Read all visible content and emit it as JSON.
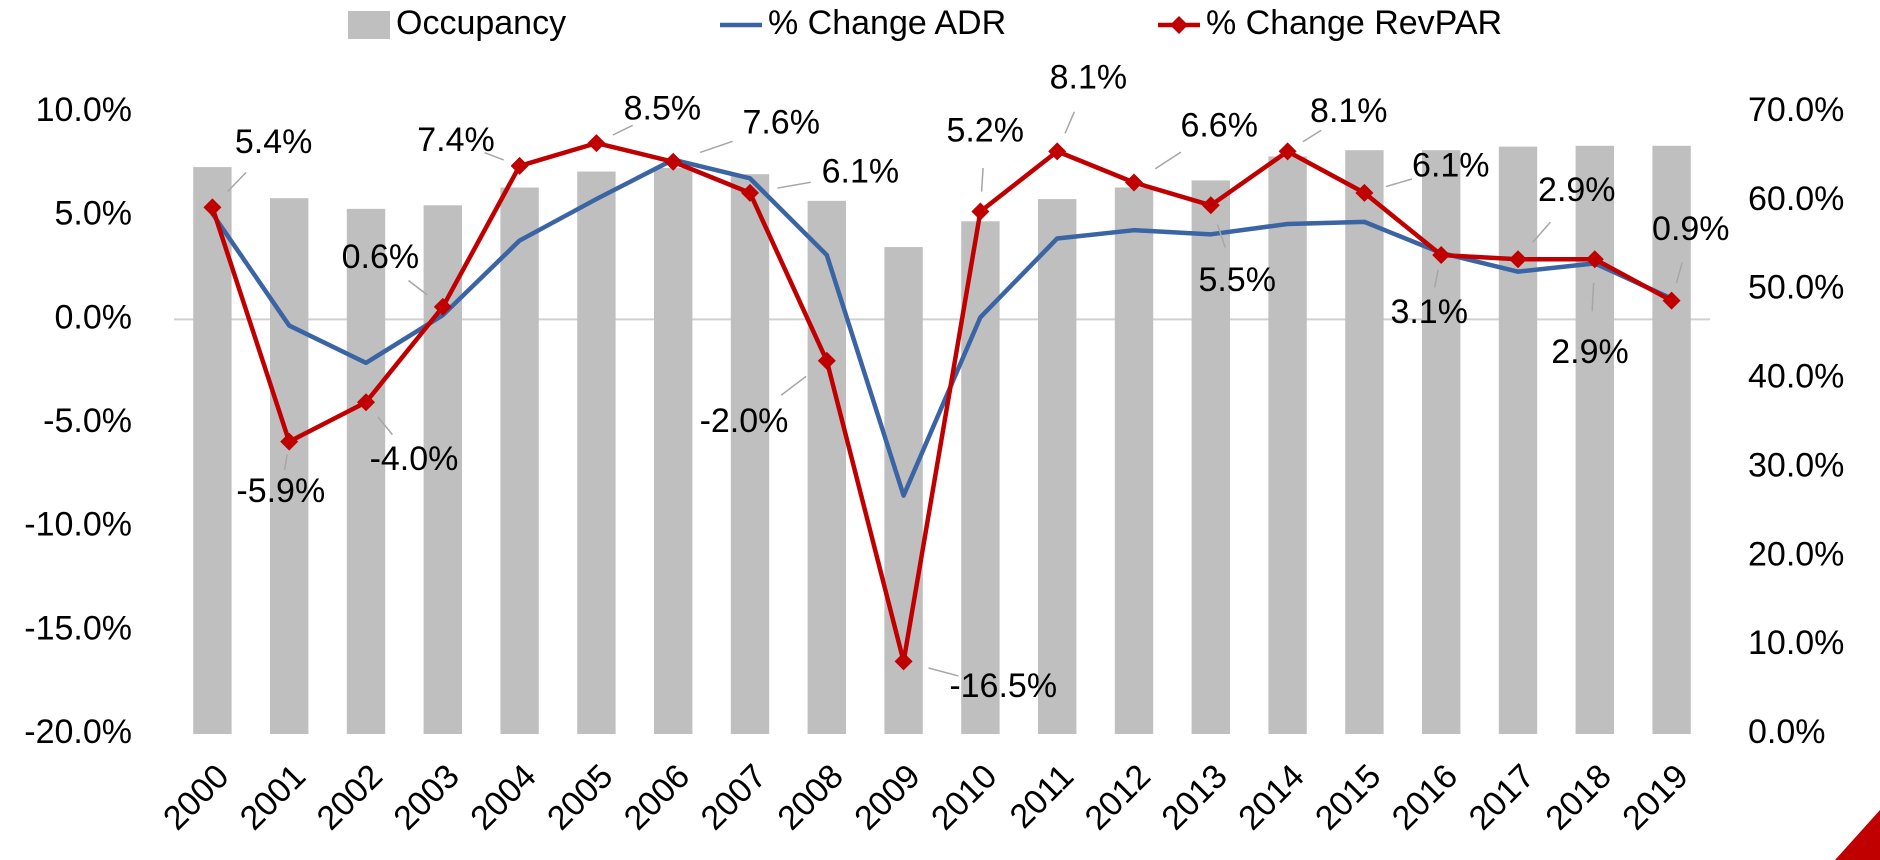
{
  "chart_data": {
    "type": "bar-line-combo",
    "categories": [
      "2000",
      "2001",
      "2002",
      "2003",
      "2004",
      "2005",
      "2006",
      "2007",
      "2008",
      "2009",
      "2010",
      "2011",
      "2012",
      "2013",
      "2014",
      "2015",
      "2016",
      "2017",
      "2018",
      "2019"
    ],
    "series": [
      {
        "name": "Occupancy",
        "type": "bar",
        "axis": "y2",
        "color": "#bfbfbf",
        "values": [
          63.8,
          60.3,
          59.1,
          59.5,
          61.5,
          63.3,
          63.7,
          63.0,
          60.0,
          54.8,
          57.7,
          60.2,
          61.5,
          62.3,
          65.0,
          65.7,
          65.7,
          66.1,
          66.2,
          66.2
        ]
      },
      {
        "name": "% Change ADR",
        "type": "line",
        "color": "#3a64a4",
        "values": [
          5.1,
          -0.3,
          -2.1,
          0.2,
          3.8,
          5.8,
          7.7,
          6.8,
          3.1,
          -8.5,
          0.1,
          3.9,
          4.3,
          4.1,
          4.6,
          4.7,
          3.2,
          2.3,
          2.7,
          1.0
        ]
      },
      {
        "name": "% Change RevPAR",
        "type": "line",
        "marker": "diamond",
        "color": "#c00000",
        "values": [
          5.4,
          -5.9,
          -4.0,
          0.6,
          7.4,
          8.5,
          7.6,
          6.1,
          -2.0,
          -16.5,
          5.2,
          8.1,
          6.6,
          5.5,
          8.1,
          6.1,
          3.1,
          2.9,
          2.9,
          0.9
        ],
        "value_labels": [
          "5.4%",
          "-5.9%",
          "-4.0%",
          "0.6%",
          "7.4%",
          "8.5%",
          "7.6%",
          "6.1%",
          "-2.0%",
          "-16.5%",
          "5.2%",
          "8.1%",
          "6.6%",
          "5.5%",
          "8.1%",
          "6.1%",
          "3.1%",
          "2.9%",
          "2.9%",
          "0.9%"
        ]
      }
    ],
    "ylim": [
      -20,
      10
    ],
    "yticks": [
      {
        "value": -20,
        "label": "-20.0%"
      },
      {
        "value": -15,
        "label": "-15.0%"
      },
      {
        "value": -10,
        "label": "-10.0%"
      },
      {
        "value": -5,
        "label": "-5.0%"
      },
      {
        "value": 0,
        "label": "0.0%"
      },
      {
        "value": 5,
        "label": "5.0%"
      },
      {
        "value": 10,
        "label": "10.0%"
      }
    ],
    "y2lim": [
      0,
      70
    ],
    "y2ticks": [
      {
        "value": 0,
        "label": "0.0%"
      },
      {
        "value": 10,
        "label": "10.0%"
      },
      {
        "value": 20,
        "label": "20.0%"
      },
      {
        "value": 30,
        "label": "30.0%"
      },
      {
        "value": 40,
        "label": "40.0%"
      },
      {
        "value": 50,
        "label": "50.0%"
      },
      {
        "value": 60,
        "label": "60.0%"
      },
      {
        "value": 70,
        "label": "70.0%"
      }
    ],
    "legend": "top",
    "zero_line": true
  }
}
